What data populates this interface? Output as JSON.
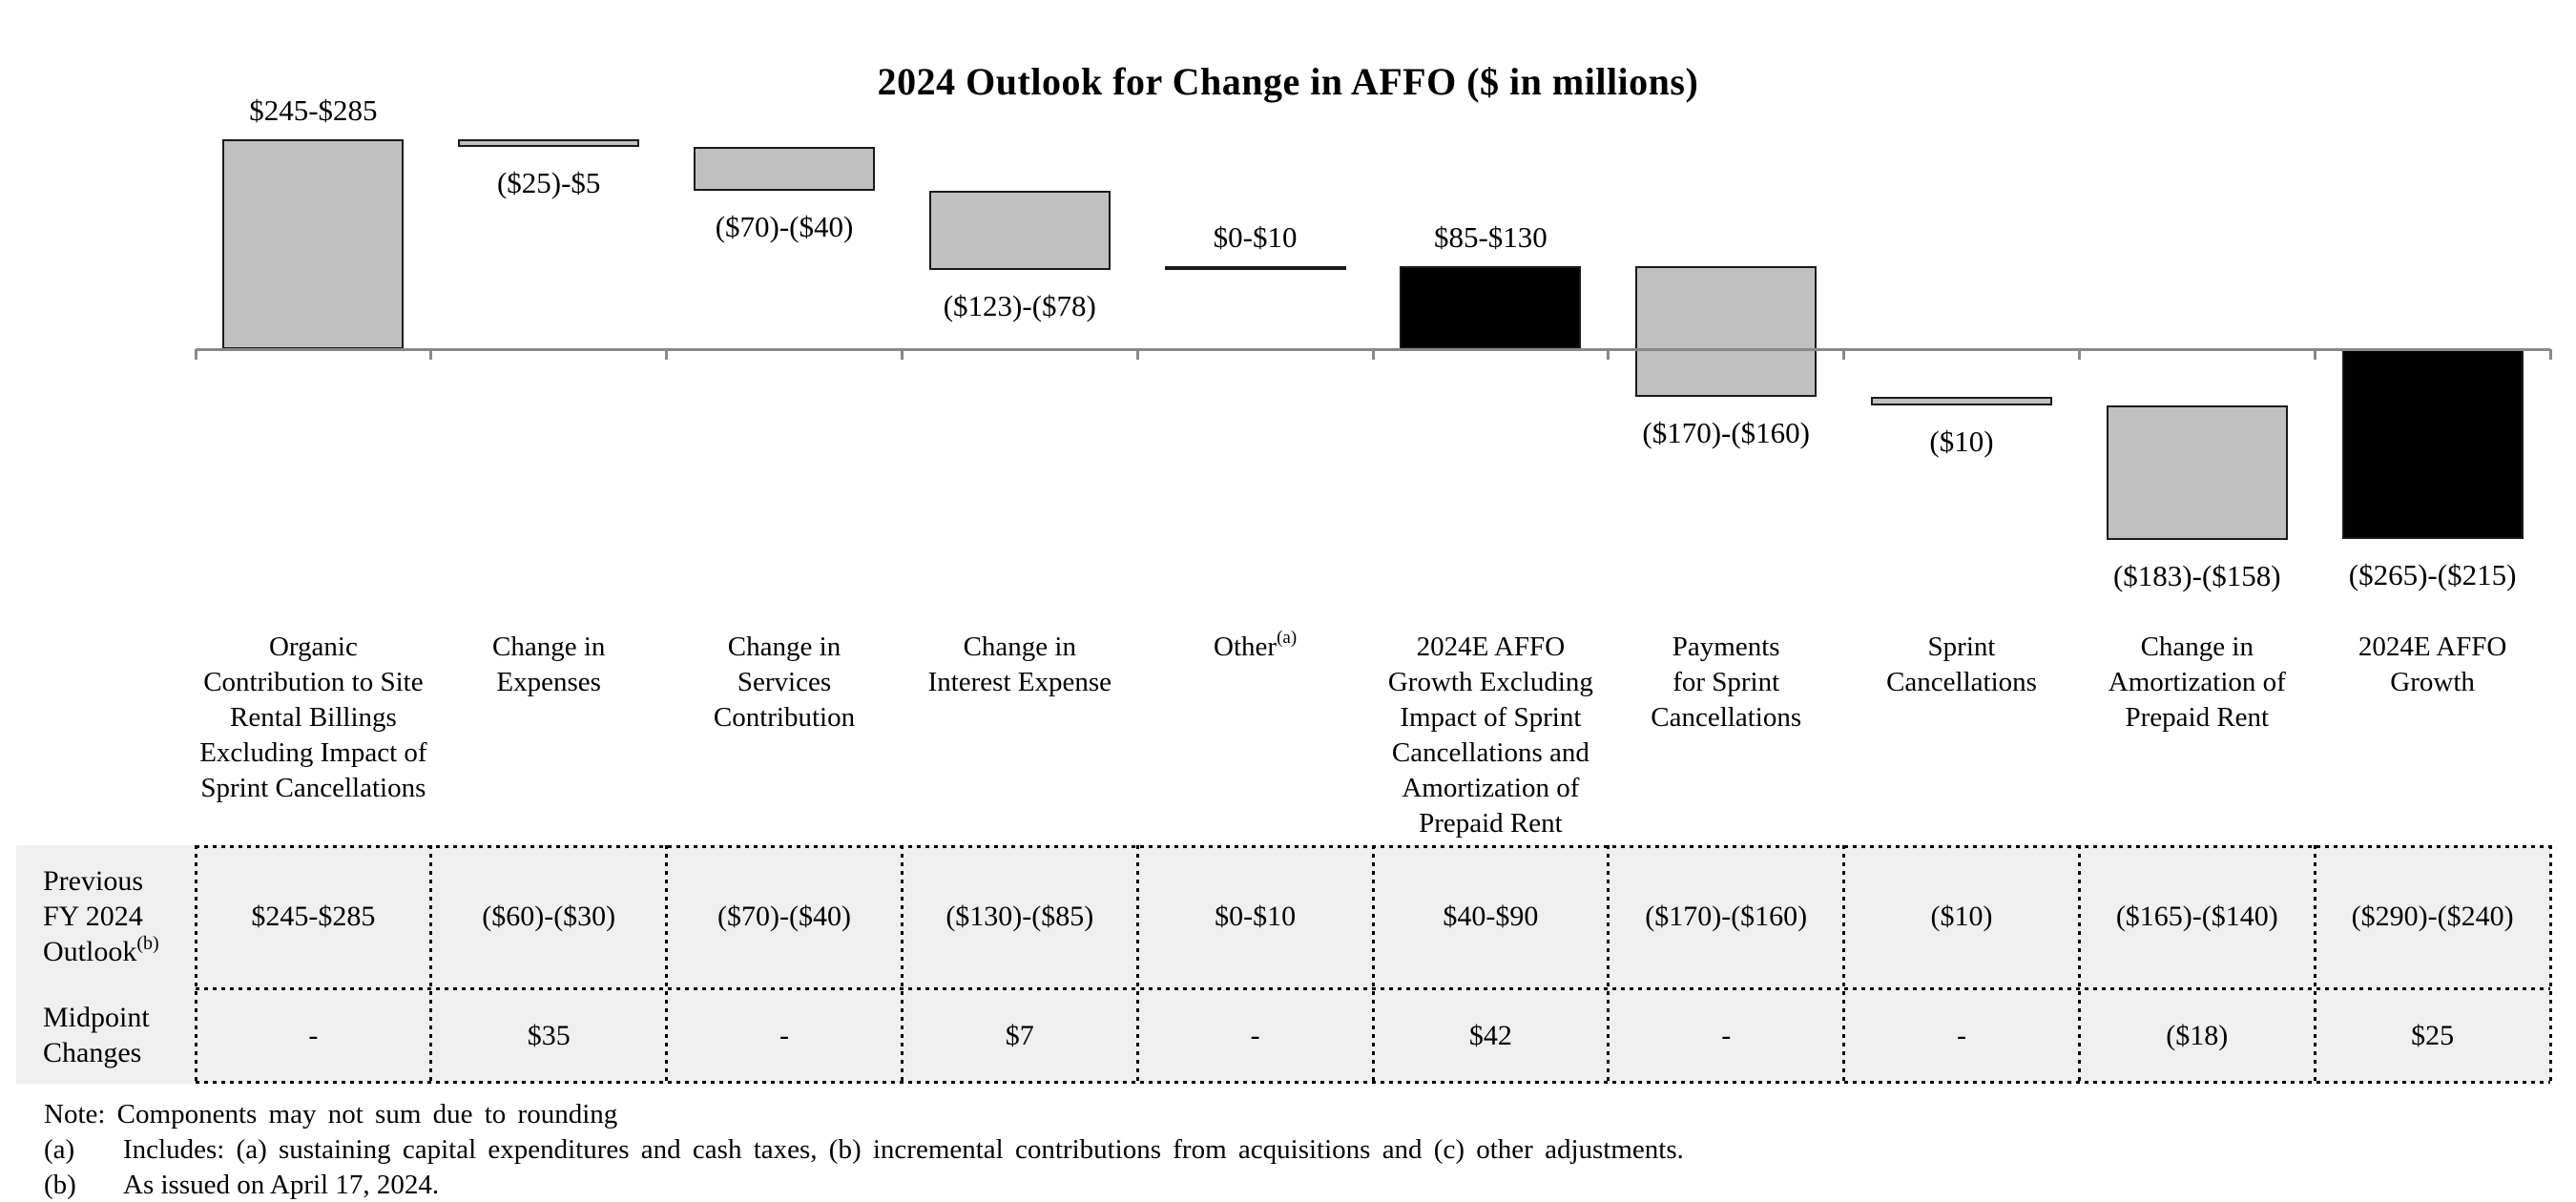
{
  "chart_data": {
    "type": "waterfall-bar",
    "title": "2024 Outlook for Change in AFFO ($ in millions)",
    "unit": "$ in millions",
    "grid": false,
    "value_axis_hidden": true,
    "approx_value_range": [
      -250,
      270
    ],
    "categories": [
      {
        "label": "Organic\nContribution to Site\nRental Billings\nExcluding Impact of\nSprint Cancellations",
        "superscript": ""
      },
      {
        "label": "Change in\nExpenses",
        "superscript": ""
      },
      {
        "label": "Change in\nServices\nContribution",
        "superscript": ""
      },
      {
        "label": "Change in\nInterest Expense",
        "superscript": ""
      },
      {
        "label": "Other",
        "superscript": "(a)"
      },
      {
        "label": "2024E AFFO\nGrowth Excluding\nImpact of Sprint\nCancellations and\nAmortization of\nPrepaid Rent",
        "superscript": ""
      },
      {
        "label": "Payments\nfor Sprint\nCancellations",
        "superscript": ""
      },
      {
        "label": "Sprint\nCancellations",
        "superscript": ""
      },
      {
        "label": "Change in\nAmortization of\nPrepaid Rent",
        "superscript": ""
      },
      {
        "label": "2024E AFFO\nGrowth",
        "superscript": ""
      }
    ],
    "series": [
      {
        "name": "Organic Contribution to Site Rental Billings Excluding Impact of Sprint Cancellations",
        "range_label": "$245-$285",
        "start": 0,
        "end": 265,
        "color": "gray",
        "label_position": "above"
      },
      {
        "name": "Change in Expenses",
        "range_label": "($25)-$5",
        "start": 265,
        "end": 255,
        "color": "gray",
        "label_position": "below"
      },
      {
        "name": "Change in Services Contribution",
        "range_label": "($70)-($40)",
        "start": 255,
        "end": 200,
        "color": "gray",
        "label_position": "below"
      },
      {
        "name": "Change in Interest Expense",
        "range_label": "($123)-($78)",
        "start": 200,
        "end": 99.5,
        "color": "gray",
        "label_position": "below"
      },
      {
        "name": "Other",
        "range_label": "$0-$10",
        "start": 99.5,
        "end": 104.5,
        "color": "gray",
        "label_position": "above"
      },
      {
        "name": "2024E AFFO Growth Excluding Impact of Sprint Cancellations and Amortization of Prepaid Rent",
        "range_label": "$85-$130",
        "start": 0,
        "end": 104.5,
        "color": "black",
        "label_position": "above"
      },
      {
        "name": "Payments for Sprint Cancellations",
        "range_label": "($170)-($160)",
        "start": 104.5,
        "end": -60.5,
        "color": "gray",
        "label_position": "below"
      },
      {
        "name": "Sprint Cancellations",
        "range_label": "($10)",
        "start": -60.5,
        "end": -70.5,
        "color": "gray",
        "label_position": "below"
      },
      {
        "name": "Change in Amortization of Prepaid Rent",
        "range_label": "($183)-($158)",
        "start": -70.5,
        "end": -241,
        "color": "gray",
        "label_position": "below"
      },
      {
        "name": "2024E AFFO Growth",
        "range_label": "($265)-($215)",
        "start": 0,
        "end": -240,
        "color": "black",
        "label_position": "below"
      }
    ]
  },
  "table": {
    "rows": [
      {
        "label_lines": "Previous\nFY 2024\nOutlook",
        "superscript": "(b)",
        "values": [
          "$245-$285",
          "($60)-($30)",
          "($70)-($40)",
          "($130)-($85)",
          "$0-$10",
          "$40-$90",
          "($170)-($160)",
          "($10)",
          "($165)-($140)",
          "($290)-($240)"
        ]
      },
      {
        "label_lines": "Midpoint\nChanges",
        "values": [
          "-",
          "$35",
          "-",
          "$7",
          "-",
          "$42",
          "-",
          "-",
          "($18)",
          "$25"
        ]
      }
    ]
  },
  "notes": {
    "note": "Note: Components may not sum due to rounding",
    "footnotes": [
      {
        "marker": "(a)",
        "text": "Includes: (a) sustaining capital expenditures and cash taxes, (b) incremental contributions from acquisitions and (c) other adjustments."
      },
      {
        "marker": "(b)",
        "text": "As issued on April 17, 2024."
      }
    ]
  },
  "colors": {
    "bar_gray": "#c0c0c0",
    "bar_black": "#010101",
    "bar_border": "#1a1a1a",
    "axis": "#888888",
    "table_bg": "#efefef",
    "grid_dot": "#000000"
  }
}
